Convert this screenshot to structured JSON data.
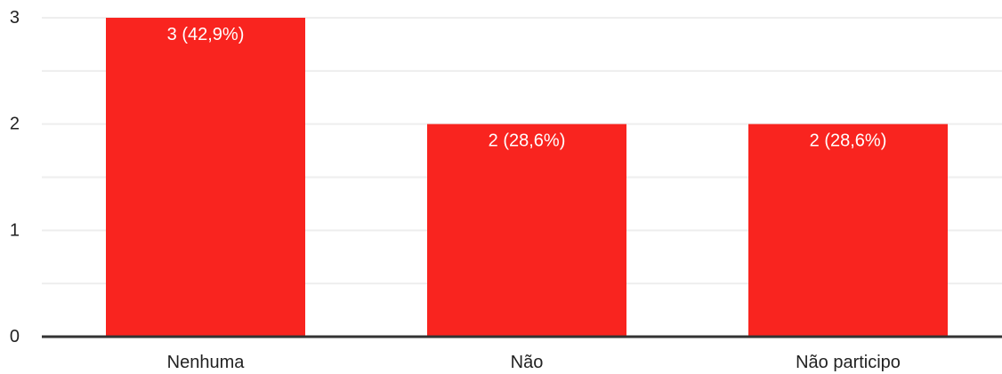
{
  "chart_data": {
    "type": "bar",
    "categories": [
      "Nenhuma",
      "Não",
      "Não participo"
    ],
    "values": [
      3,
      2,
      2
    ],
    "data_labels": [
      "3 (42,9%)",
      "2 (28,6%)",
      "2 (28,6%)"
    ],
    "title": "",
    "xlabel": "",
    "ylabel": "",
    "ylim": [
      0,
      3
    ],
    "yticks": [
      "0",
      "1",
      "2",
      "3"
    ],
    "grid": true,
    "legend": "none"
  },
  "colors": {
    "bar": "#f9241f",
    "gridline": "#eeeeee",
    "axis": "#333333",
    "text": "#222222",
    "data_label": "#ffffff"
  }
}
